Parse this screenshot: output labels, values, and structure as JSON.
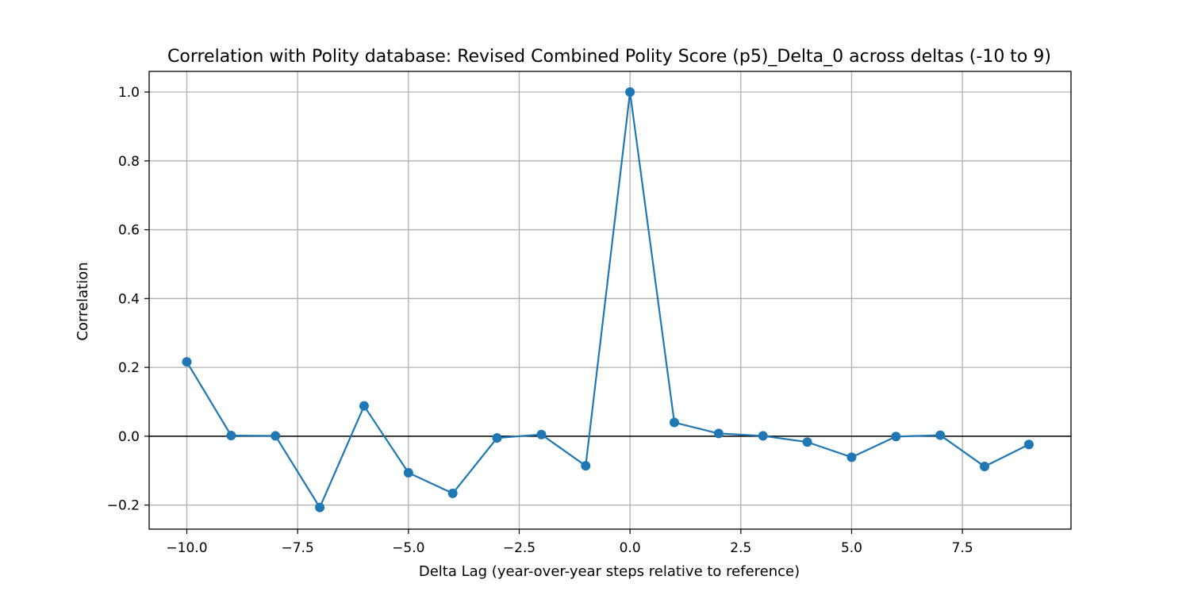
{
  "chart_data": {
    "type": "line",
    "title": "Correlation with Polity database: Revised Combined Polity Score (p5)_Delta_0 across deltas (-10 to 9)",
    "xlabel": "Delta Lag (year-over-year steps relative to reference)",
    "ylabel": "Correlation",
    "xlim": [
      -10.85,
      9.95
    ],
    "ylim": [
      -0.27,
      1.06
    ],
    "xticks": [
      -10.0,
      -7.5,
      -5.0,
      -2.5,
      0.0,
      2.5,
      5.0,
      7.5
    ],
    "xtick_labels": [
      "−10.0",
      "−7.5",
      "−5.0",
      "−2.5",
      "0.0",
      "2.5",
      "5.0",
      "7.5"
    ],
    "yticks": [
      -0.2,
      0.0,
      0.2,
      0.4,
      0.6,
      0.8,
      1.0
    ],
    "ytick_labels": [
      "−0.2",
      "0.0",
      "0.2",
      "0.4",
      "0.6",
      "0.8",
      "1.0"
    ],
    "grid": true,
    "reference_line": {
      "y": 0.0,
      "color": "#000000"
    },
    "series": [
      {
        "color": "#1f77b4",
        "marker": "circle",
        "x": [
          -10,
          -9,
          -8,
          -7,
          -6,
          -5,
          -4,
          -3,
          -2,
          -1,
          0,
          1,
          2,
          3,
          4,
          5,
          6,
          7,
          8,
          9
        ],
        "values": [
          0.216,
          0.002,
          0.001,
          -0.207,
          0.088,
          -0.106,
          -0.166,
          -0.005,
          0.005,
          -0.086,
          1.0,
          0.04,
          0.008,
          0.001,
          -0.017,
          -0.061,
          -0.001,
          0.003,
          -0.088,
          -0.024
        ]
      }
    ]
  }
}
